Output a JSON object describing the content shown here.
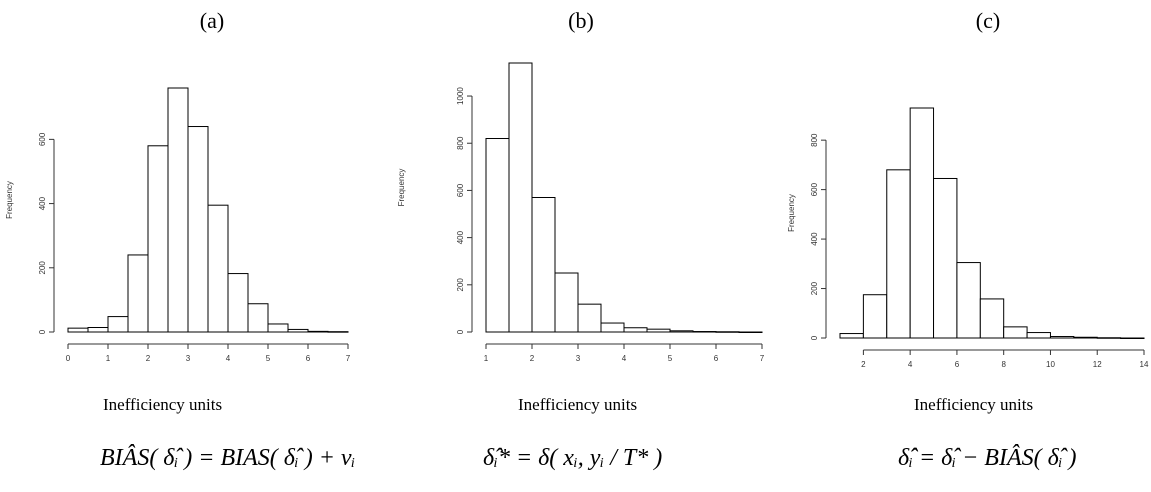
{
  "chart_data": [
    {
      "type": "bar",
      "panel_label": "(a)",
      "ylabel": "Frequency",
      "xlabel": "Inefficiency units",
      "formula": "BIÂS( δ̂ᵢ ) = BIAS( δ̂ᵢ ) + vᵢ",
      "bin_edges": [
        0,
        0.5,
        1,
        1.5,
        2,
        2.5,
        3,
        3.5,
        4,
        4.5,
        5,
        5.5,
        6,
        6.5,
        7
      ],
      "values": [
        12,
        14,
        48,
        240,
        580,
        760,
        640,
        395,
        182,
        88,
        25,
        8,
        2,
        1
      ],
      "xlim": [
        0,
        7
      ],
      "ylim": [
        0,
        760
      ],
      "xticks": [
        0,
        1,
        2,
        3,
        4,
        5,
        6,
        7
      ],
      "yticks": [
        0,
        200,
        400,
        600
      ]
    },
    {
      "type": "bar",
      "panel_label": "(b)",
      "ylabel": "Frequency",
      "xlabel": "Inefficiency units",
      "formula": "δ̂ᵢ* = δ( xᵢ, yᵢ / T* )",
      "bin_edges": [
        1,
        1.5,
        2,
        2.5,
        3,
        3.5,
        4,
        4.5,
        5,
        5.5,
        6,
        6.5,
        7
      ],
      "values": [
        820,
        1140,
        570,
        250,
        118,
        38,
        18,
        12,
        5,
        2,
        1,
        0
      ],
      "xlim": [
        1,
        7
      ],
      "ylim": [
        0,
        1140
      ],
      "xticks": [
        1,
        2,
        3,
        4,
        5,
        6,
        7
      ],
      "yticks": [
        0,
        200,
        400,
        600,
        800,
        1000
      ]
    },
    {
      "type": "bar",
      "panel_label": "(c)",
      "ylabel": "Frequency",
      "xlabel": "Inefficiency units",
      "formula": "δ̂̂ᵢ = δ̂ᵢ − BIÂS( δ̂ᵢ )",
      "bin_edges": [
        1,
        2,
        3,
        4,
        5,
        6,
        7,
        8,
        9,
        10,
        11,
        12,
        13,
        14
      ],
      "values": [
        18,
        175,
        680,
        930,
        645,
        305,
        158,
        45,
        22,
        6,
        3,
        1,
        0
      ],
      "xlim": [
        1,
        14
      ],
      "ylim": [
        0,
        930
      ],
      "xticks": [
        2,
        4,
        6,
        8,
        10,
        12,
        14
      ],
      "yticks": [
        0,
        200,
        400,
        600,
        800
      ]
    }
  ]
}
